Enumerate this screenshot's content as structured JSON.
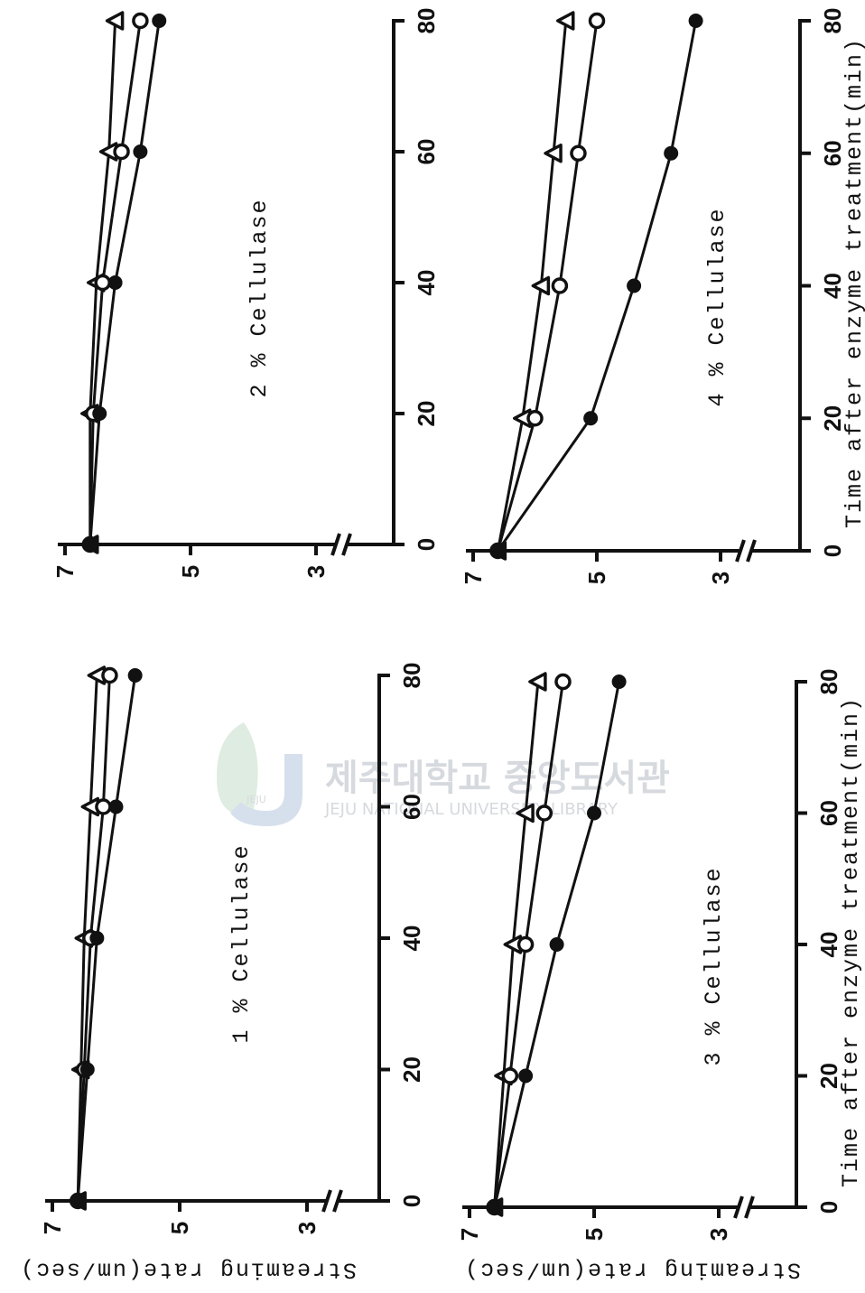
{
  "watermark": {
    "korean": "제주대학교 중앙도서관",
    "english": "JEJU NATIONAL UNIVERSITY LIBRARY",
    "logo_text": "JEJU"
  },
  "chart_data": [
    {
      "type": "line",
      "title": "1 % Cellulase",
      "xlabel": "",
      "ylabel": "Streaming rate(um/sec)",
      "x": [
        0,
        20,
        40,
        60,
        80
      ],
      "xticks": [
        "0",
        "20",
        "40",
        "60",
        "80"
      ],
      "yticks": [
        "3",
        "5",
        "7"
      ],
      "ylim": [
        3,
        7
      ],
      "xlim": [
        0,
        80
      ],
      "series": [
        {
          "marker": "triangle",
          "values": [
            6.6,
            6.55,
            6.5,
            6.4,
            6.3
          ]
        },
        {
          "marker": "open-circle",
          "values": [
            6.6,
            6.5,
            6.4,
            6.2,
            6.1
          ]
        },
        {
          "marker": "filled-circle",
          "values": [
            6.6,
            6.45,
            6.3,
            6.0,
            5.7
          ]
        }
      ]
    },
    {
      "type": "line",
      "title": "2 % Cellulase",
      "xlabel": "",
      "ylabel": "",
      "x": [
        0,
        20,
        40,
        60,
        80
      ],
      "xticks": [
        "0",
        "20",
        "40",
        "60",
        "80"
      ],
      "yticks": [
        "3",
        "5",
        "7"
      ],
      "ylim": [
        3,
        7
      ],
      "xlim": [
        0,
        80
      ],
      "series": [
        {
          "marker": "triangle",
          "values": [
            6.6,
            6.6,
            6.5,
            6.3,
            6.2
          ]
        },
        {
          "marker": "open-circle",
          "values": [
            6.6,
            6.55,
            6.4,
            6.1,
            5.8
          ]
        },
        {
          "marker": "filled-circle",
          "values": [
            6.6,
            6.45,
            6.2,
            5.8,
            5.5
          ]
        }
      ]
    },
    {
      "type": "line",
      "title": "3 % Cellulase",
      "xlabel": "Time after enzyme treatment(min)",
      "ylabel": "Streaming rate(um/sec)",
      "x": [
        0,
        20,
        40,
        60,
        80
      ],
      "xticks": [
        "0",
        "20",
        "40",
        "60",
        "80"
      ],
      "yticks": [
        "3",
        "5",
        "7"
      ],
      "ylim": [
        3,
        7
      ],
      "xlim": [
        0,
        80
      ],
      "series": [
        {
          "marker": "triangle",
          "values": [
            6.6,
            6.45,
            6.3,
            6.1,
            5.9
          ]
        },
        {
          "marker": "open-circle",
          "values": [
            6.6,
            6.35,
            6.1,
            5.8,
            5.5
          ]
        },
        {
          "marker": "filled-circle",
          "values": [
            6.6,
            6.1,
            5.6,
            5.0,
            4.6
          ]
        }
      ]
    },
    {
      "type": "line",
      "title": "4 % Cellulase",
      "xlabel": "Time after enzyme treatment(min)",
      "ylabel": "",
      "x": [
        0,
        20,
        40,
        60,
        80
      ],
      "xticks": [
        "0",
        "20",
        "40",
        "60",
        "80"
      ],
      "yticks": [
        "3",
        "5",
        "7"
      ],
      "ylim": [
        3,
        7
      ],
      "xlim": [
        0,
        80
      ],
      "series": [
        {
          "marker": "triangle",
          "values": [
            6.6,
            6.2,
            5.9,
            5.7,
            5.5
          ]
        },
        {
          "marker": "open-circle",
          "values": [
            6.6,
            6.0,
            5.6,
            5.3,
            5.0
          ]
        },
        {
          "marker": "filled-circle",
          "values": [
            6.6,
            5.1,
            4.4,
            3.8,
            3.4
          ]
        }
      ]
    }
  ]
}
